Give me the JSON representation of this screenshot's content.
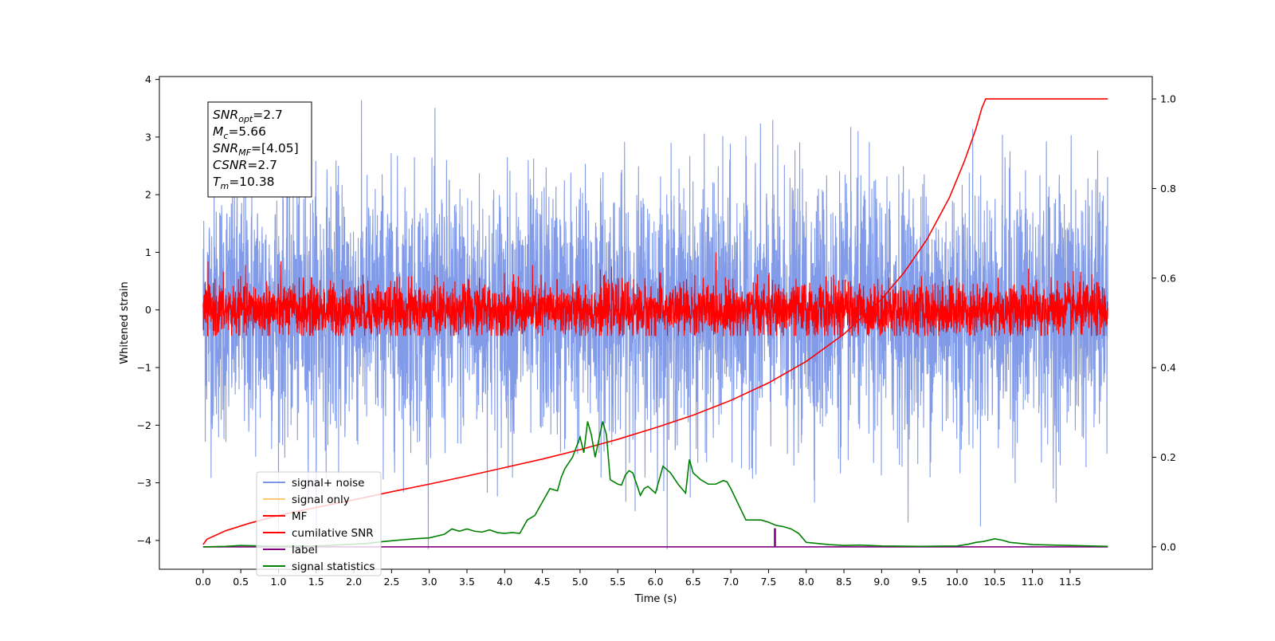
{
  "chart_data": {
    "type": "line",
    "xlabel": "Time (s)",
    "ylabel": "Whitened strain",
    "xlim": [
      -0.58,
      12.59
    ],
    "ylim": [
      -4.5,
      4.05
    ],
    "ylim_right": [
      -0.05,
      1.05
    ],
    "x_ticks": [
      0.0,
      0.5,
      1.0,
      1.5,
      2.0,
      2.5,
      3.0,
      3.5,
      4.0,
      4.5,
      5.0,
      5.5,
      6.0,
      6.5,
      7.0,
      7.5,
      8.0,
      8.5,
      9.0,
      9.5,
      10.0,
      10.5,
      11.0,
      11.5
    ],
    "x_tick_labels": [
      "0.0",
      "0.5",
      "1.0",
      "1.5",
      "2.0",
      "2.5",
      "3.0",
      "3.5",
      "4.0",
      "4.5",
      "5.0",
      "5.5",
      "6.0",
      "6.5",
      "7.0",
      "7.5",
      "8.0",
      "8.5",
      "9.0",
      "9.5",
      "10.0",
      "10.5",
      "11.0",
      "11.5"
    ],
    "y_ticks": [
      -4,
      -3,
      -2,
      -1,
      0,
      1,
      2,
      3,
      4
    ],
    "y_tick_labels": [
      "−4",
      "−3",
      "−2",
      "−1",
      "0",
      "1",
      "2",
      "3",
      "4"
    ],
    "y_right_ticks": [
      0.0,
      0.2,
      0.4,
      0.6,
      0.8,
      1.0
    ],
    "y_right_tick_labels": [
      "0.0",
      "0.2",
      "0.4",
      "0.6",
      "0.8",
      "1.0"
    ],
    "grid": false,
    "legend_placement": "lower-left",
    "series": [
      {
        "name": "signal+ noise",
        "color": "#7b96e8",
        "axis": "left",
        "style": "noise",
        "x_range": [
          0.0,
          12.0
        ],
        "center": 0.0,
        "band": [
          -2.0,
          2.0
        ],
        "range_observed": [
          -4.15,
          3.68
        ]
      },
      {
        "name": "signal only",
        "color": "#ffc977",
        "axis": "left",
        "style": "line",
        "x": [],
        "y": []
      },
      {
        "name": "MF",
        "color": "#ff0000",
        "axis": "left",
        "style": "noise",
        "x_range": [
          0.0,
          12.0
        ],
        "center": 0.0,
        "band": [
          -0.35,
          0.5
        ],
        "range_observed": [
          -0.45,
          1.0
        ]
      },
      {
        "name": "cumilative SNR",
        "color": "#ff0000",
        "axis": "right",
        "x": [
          0.0,
          0.05,
          0.3,
          0.6,
          1.0,
          1.5,
          2.0,
          2.5,
          3.0,
          3.5,
          4.0,
          4.5,
          5.0,
          5.5,
          6.0,
          6.5,
          7.0,
          7.5,
          8.0,
          8.5,
          9.0,
          9.3,
          9.6,
          9.9,
          10.1,
          10.25,
          10.33,
          10.38,
          10.5,
          11.0,
          11.5,
          12.0
        ],
        "y": [
          0.005,
          0.017,
          0.036,
          0.052,
          0.07,
          0.088,
          0.105,
          0.123,
          0.14,
          0.158,
          0.177,
          0.196,
          0.217,
          0.24,
          0.266,
          0.294,
          0.327,
          0.366,
          0.414,
          0.475,
          0.553,
          0.613,
          0.686,
          0.78,
          0.862,
          0.933,
          0.98,
          1.0,
          1.0,
          1.0,
          1.0,
          1.0
        ]
      },
      {
        "name": "label",
        "color": "#800080",
        "axis": "right",
        "x": [
          0.0,
          7.58,
          7.58,
          7.59,
          7.59,
          12.0
        ],
        "y": [
          0.0,
          0.0,
          0.04,
          0.04,
          0.0,
          0.0
        ]
      },
      {
        "name": "signal statistics",
        "color": "#008000",
        "axis": "right",
        "x": [
          0.0,
          0.3,
          0.5,
          1.0,
          1.5,
          2.0,
          2.2,
          2.4,
          2.6,
          2.8,
          3.0,
          3.2,
          3.3,
          3.4,
          3.5,
          3.6,
          3.7,
          3.8,
          3.9,
          4.0,
          4.1,
          4.2,
          4.3,
          4.4,
          4.5,
          4.6,
          4.7,
          4.75,
          4.8,
          4.9,
          5.0,
          5.05,
          5.1,
          5.15,
          5.2,
          5.3,
          5.35,
          5.4,
          5.5,
          5.55,
          5.6,
          5.65,
          5.7,
          5.8,
          5.85,
          5.9,
          6.0,
          6.1,
          6.2,
          6.3,
          6.4,
          6.45,
          6.5,
          6.6,
          6.7,
          6.8,
          6.9,
          6.95,
          7.0,
          7.1,
          7.2,
          7.3,
          7.4,
          7.5,
          7.6,
          7.7,
          7.8,
          7.9,
          8.0,
          8.3,
          8.5,
          8.7,
          9.0,
          9.5,
          10.0,
          10.15,
          10.25,
          10.35,
          10.5,
          10.6,
          10.7,
          11.0,
          11.5,
          12.0
        ],
        "y": [
          0.0,
          0.001,
          0.003,
          0.001,
          0.002,
          0.006,
          0.008,
          0.012,
          0.015,
          0.018,
          0.02,
          0.028,
          0.04,
          0.035,
          0.04,
          0.035,
          0.033,
          0.038,
          0.032,
          0.03,
          0.032,
          0.03,
          0.06,
          0.07,
          0.1,
          0.13,
          0.125,
          0.155,
          0.175,
          0.2,
          0.245,
          0.21,
          0.28,
          0.25,
          0.2,
          0.28,
          0.25,
          0.15,
          0.14,
          0.138,
          0.16,
          0.17,
          0.165,
          0.115,
          0.13,
          0.135,
          0.12,
          0.18,
          0.165,
          0.14,
          0.12,
          0.195,
          0.165,
          0.15,
          0.14,
          0.14,
          0.148,
          0.145,
          0.13,
          0.095,
          0.06,
          0.06,
          0.06,
          0.055,
          0.048,
          0.045,
          0.04,
          0.03,
          0.01,
          0.005,
          0.003,
          0.004,
          0.002,
          0.001,
          0.002,
          0.006,
          0.01,
          0.012,
          0.018,
          0.015,
          0.01,
          0.005,
          0.003,
          0.001
        ]
      }
    ],
    "info_box": [
      {
        "name": "SNR",
        "sub": "opt",
        "value": "=2.7"
      },
      {
        "name": "M",
        "sub": "c",
        "value": "=5.66"
      },
      {
        "name": "SNR",
        "sub": "MF",
        "value": "=[4.05]"
      },
      {
        "name": "CSNR",
        "sub": "",
        "value": "=2.7"
      },
      {
        "name": "T",
        "sub": "m",
        "value": "=10.38"
      }
    ]
  }
}
